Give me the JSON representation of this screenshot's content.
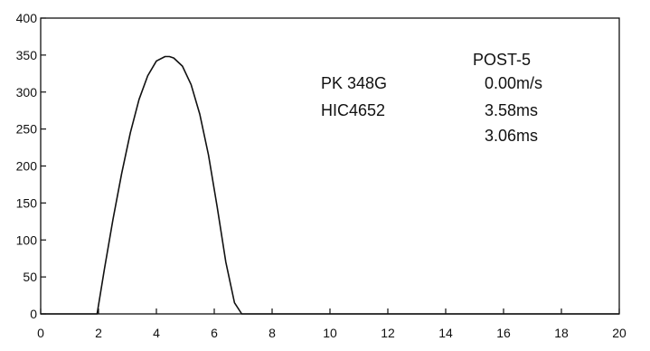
{
  "chart_data": {
    "type": "line",
    "xlim": [
      0,
      20
    ],
    "ylim": [
      0,
      400
    ],
    "x_ticks": [
      0,
      2,
      4,
      6,
      8,
      10,
      12,
      14,
      16,
      18,
      20
    ],
    "y_ticks": [
      0,
      50,
      100,
      150,
      200,
      250,
      300,
      350,
      400
    ],
    "grid": false,
    "series": [
      {
        "color": "#111111",
        "x": [
          0,
          1.95,
          2.2,
          2.5,
          2.8,
          3.1,
          3.4,
          3.7,
          4.0,
          4.3,
          4.45,
          4.6,
          4.9,
          5.2,
          5.5,
          5.8,
          6.1,
          6.4,
          6.7,
          6.95,
          8,
          10,
          12,
          14,
          16,
          18,
          20
        ],
        "y": [
          0,
          0,
          60,
          128,
          190,
          245,
          290,
          322,
          342,
          348,
          348,
          346,
          335,
          310,
          270,
          215,
          145,
          70,
          15,
          0,
          0,
          0,
          0,
          0,
          0,
          0,
          0
        ]
      }
    ],
    "annotations": {
      "peak": "PK 348G",
      "hic": "HIC4652",
      "test_name": "POST-5",
      "velocity": "0.00m/s",
      "time_1": "3.58ms",
      "time_2": "3.06ms"
    }
  }
}
